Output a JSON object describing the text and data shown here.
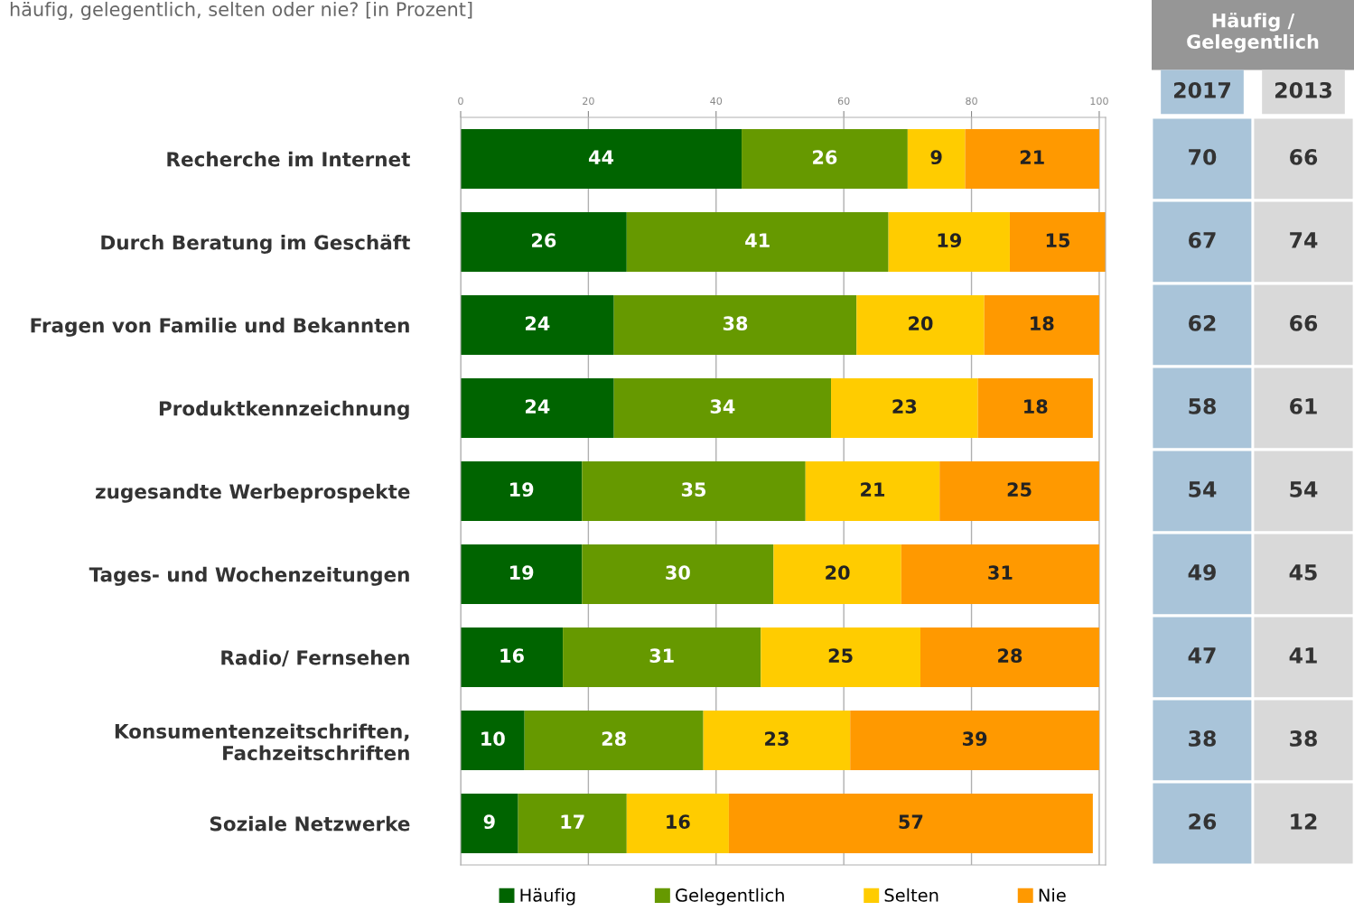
{
  "chart_data": [
    {
      "type": "bar",
      "orientation": "horizontal",
      "stacked": true,
      "title": "häufig, gelegentlich, selten oder nie? [in Prozent]",
      "categories": [
        "Recherche im Internet",
        "Durch Beratung im Geschäft",
        "Fragen von Familie und Bekannten",
        "Produktkennzeichnung",
        "zugesandte Werbeprospekte",
        "Tages- und Wochenzeitungen",
        "Radio/ Fernsehen",
        "Konsumentenzeitschriften,\nFachzeitschriften",
        "Soziale Netzwerke"
      ],
      "series": [
        {
          "name": "Häufig",
          "color": "#006400",
          "values": [
            44,
            26,
            24,
            24,
            19,
            19,
            16,
            10,
            9
          ]
        },
        {
          "name": "Gelegentlich",
          "color": "#669900",
          "values": [
            26,
            41,
            38,
            34,
            35,
            30,
            31,
            28,
            17
          ]
        },
        {
          "name": "Selten",
          "color": "#ffcc00",
          "values": [
            9,
            19,
            20,
            23,
            21,
            20,
            25,
            23,
            16
          ]
        },
        {
          "name": "Nie",
          "color": "#ff9900",
          "values": [
            21,
            15,
            18,
            18,
            25,
            31,
            28,
            39,
            57
          ]
        }
      ],
      "xlim": [
        0,
        101
      ],
      "xticks": [
        0,
        20,
        40,
        60,
        80,
        100
      ],
      "grid": "x",
      "legend": "bottom",
      "data_labels": true
    },
    {
      "type": "heatmap",
      "title": "Häufig /\nGelegentlich",
      "categories": [
        "2017",
        "2013"
      ],
      "y_categories": [
        null,
        null,
        null,
        null,
        null,
        null,
        null,
        null,
        null
      ],
      "cells": [
        [
          70,
          66
        ],
        [
          67,
          74
        ],
        [
          62,
          66
        ],
        [
          58,
          61
        ],
        [
          54,
          54
        ],
        [
          49,
          45
        ],
        [
          47,
          41
        ],
        [
          38,
          38
        ],
        [
          26,
          12
        ]
      ],
      "data_labels": true
    }
  ]
}
